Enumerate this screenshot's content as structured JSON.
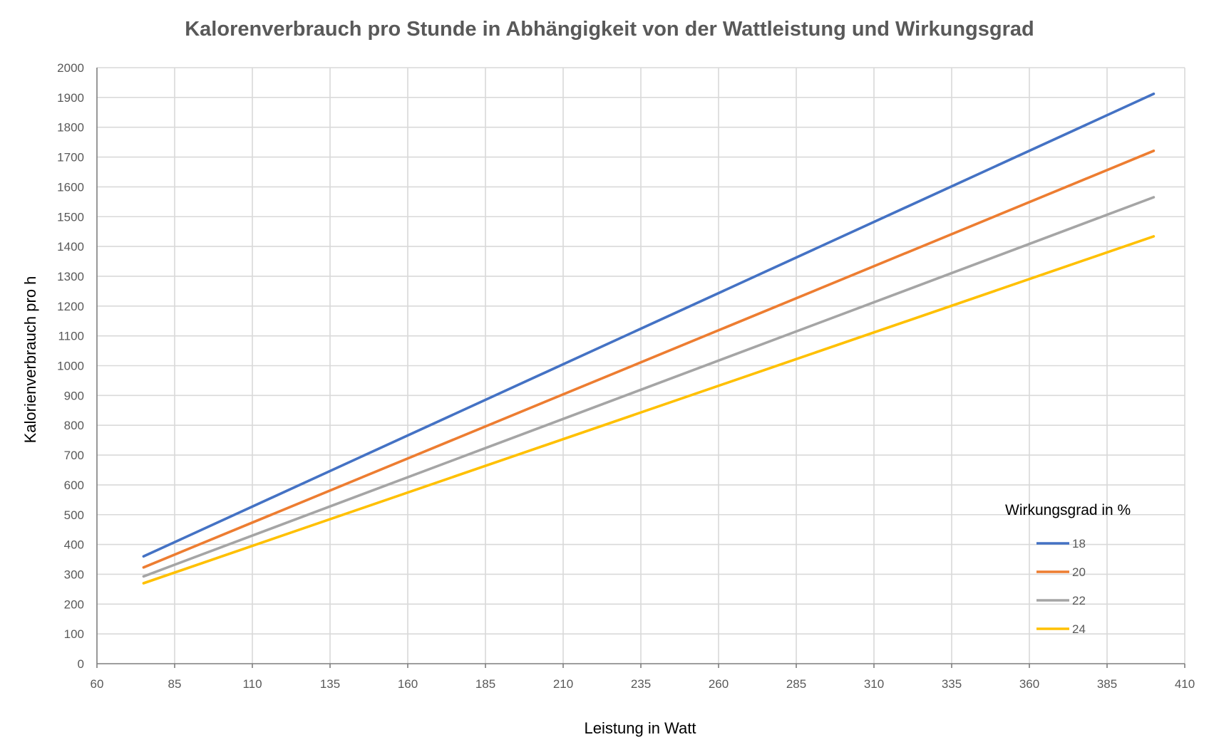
{
  "chart_data": {
    "type": "line",
    "title": "Kalorenverbrauch pro Stunde  in Abhängigkeit von der Wattleistung und Wirkungsgrad",
    "xlabel": "Leistung in Watt",
    "ylabel": "Kalorienverbrauch pro h",
    "xlim": [
      60,
      410
    ],
    "ylim": [
      0,
      2000
    ],
    "xticks": [
      60,
      85,
      110,
      135,
      160,
      185,
      210,
      235,
      260,
      285,
      310,
      335,
      360,
      385,
      410
    ],
    "yticks": [
      0,
      100,
      200,
      300,
      400,
      500,
      600,
      700,
      800,
      900,
      1000,
      1100,
      1200,
      1300,
      1400,
      1500,
      1600,
      1700,
      1800,
      1900,
      2000
    ],
    "grid": true,
    "legend": {
      "title": "Wirkungsgrad in %",
      "position": "bottom-right"
    },
    "x": [
      75,
      400
    ],
    "series": [
      {
        "name": "18",
        "color": "#4472c4",
        "values": [
          360,
          1912
        ]
      },
      {
        "name": "20",
        "color": "#ed7d31",
        "values": [
          323,
          1721
        ]
      },
      {
        "name": "22",
        "color": "#a5a5a5",
        "values": [
          293,
          1565
        ]
      },
      {
        "name": "24",
        "color": "#ffc000",
        "values": [
          270,
          1434
        ]
      }
    ]
  }
}
